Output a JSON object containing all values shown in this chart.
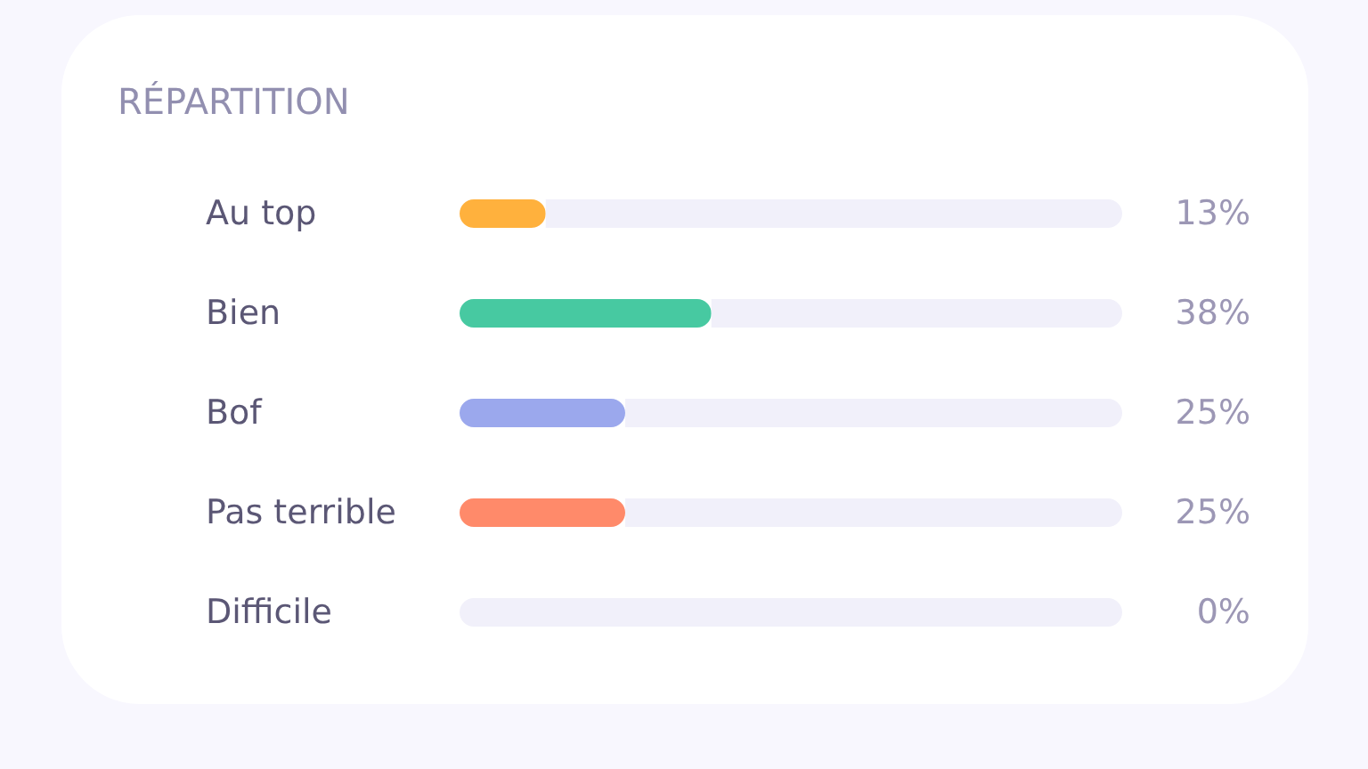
{
  "chart_data": {
    "type": "bar",
    "orientation": "horizontal",
    "stacked": true,
    "title": "RÉPARTITION",
    "categories": [
      "Au top",
      "Bien",
      "Bof",
      "Pas terrible",
      "Difficile"
    ],
    "series": [
      {
        "values": [
          13,
          38,
          25,
          25,
          0
        ],
        "colors": [
          "#ffb13d",
          "#47c9a1",
          "#9ba8ed",
          "#ff8a6a",
          null
        ],
        "value_labels": [
          "13%",
          "38%",
          "25%",
          "25%",
          "0%"
        ]
      },
      {
        "color": "#f1f0fa",
        "values": [
          87,
          62,
          75,
          75,
          100
        ]
      }
    ],
    "xlim": [
      0,
      100
    ],
    "tick_labels": "y"
  }
}
